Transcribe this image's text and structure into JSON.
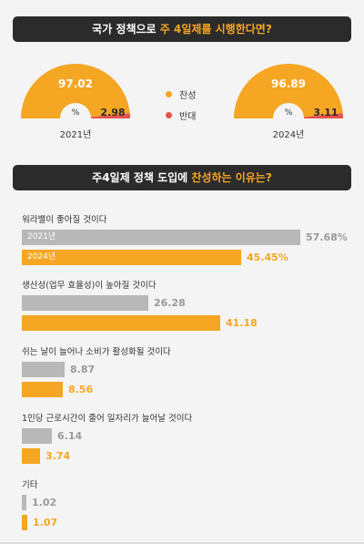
{
  "banner1": {
    "pre": "국가 정책으로 ",
    "hl": "주 4일제를 시행한다면?"
  },
  "banner2": {
    "pre": "주4일제 정책 도입에 ",
    "hl": "찬성하는 이유는?"
  },
  "colors": {
    "orange": "#f5a623",
    "red": "#e8534a",
    "gray": "#b8b8b8",
    "dark": "#2b2b2b"
  },
  "chart_data": [
    {
      "type": "pie",
      "title": "국가 정책으로 주 4일제를 시행한다면?",
      "center_label": "%",
      "legend": [
        "찬성",
        "반대"
      ],
      "years": [
        {
          "year": "2021년",
          "values": [
            97.02,
            2.98
          ],
          "labels": [
            "97.02",
            "2.98"
          ]
        },
        {
          "year": "2024년",
          "values": [
            96.89,
            3.11
          ],
          "labels": [
            "96.89",
            "3.11"
          ]
        }
      ]
    },
    {
      "type": "bar",
      "title": "주4일제 정책 도입에 찬성하는 이유는?",
      "series": [
        {
          "name": "2021년",
          "values": [
            57.68,
            26.28,
            8.87,
            6.14,
            1.02
          ],
          "labels": [
            "57.68%",
            "26.28",
            "8.87",
            "6.14",
            "1.02"
          ]
        },
        {
          "name": "2024년",
          "values": [
            45.45,
            41.18,
            8.56,
            3.74,
            1.07
          ],
          "labels": [
            "45.45%",
            "41.18",
            "8.56",
            "3.74",
            "1.07"
          ]
        }
      ],
      "categories": [
        "워라밸이 좋아질 것이다",
        "생산성(업무 효율성)이 높아질 것이다",
        "쉬는 날이 늘어나 소비가 활성화될 것이다",
        "1인당 근로시간이 줄어 일자리가 늘어날 것이다",
        "기타"
      ]
    }
  ]
}
